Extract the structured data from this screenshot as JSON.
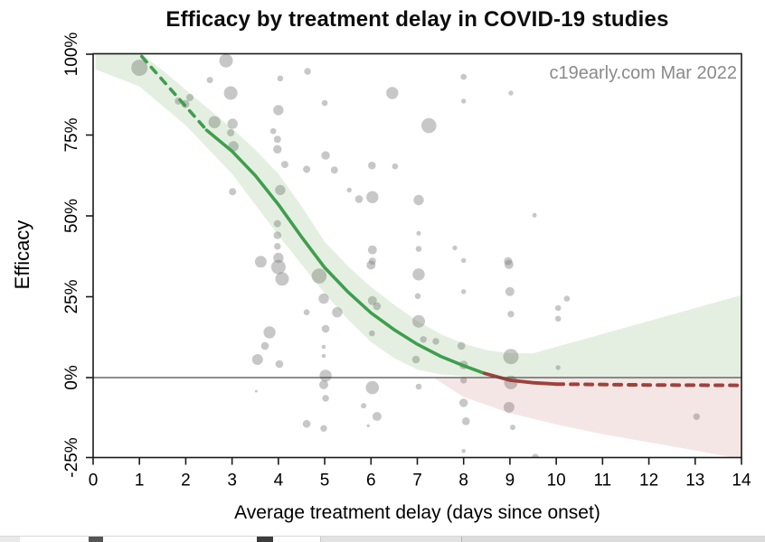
{
  "header": {
    "title": "Efficacy by treatment delay in COVID-19 studies",
    "watermark": "c19early.com Mar 2022"
  },
  "chart_data": {
    "type": "scatter",
    "title": "Efficacy by treatment delay in COVID-19 studies",
    "subtitle": "",
    "watermark": "c19early.com Mar 2022",
    "xlabel": "Average treatment delay (days since onset)",
    "ylabel": "Efficacy",
    "xlim": [
      0,
      14
    ],
    "ylim": [
      -27,
      100.5
    ],
    "x_ticks": [
      0,
      1,
      2,
      3,
      4,
      5,
      6,
      7,
      8,
      9,
      10,
      11,
      12,
      13,
      14
    ],
    "x_tick_labels": [
      "0",
      "1",
      "2",
      "3",
      "4",
      "5",
      "6",
      "7",
      "8",
      "9",
      "10",
      "11",
      "12",
      "13",
      "14"
    ],
    "y_ticks": [
      -25,
      0,
      25,
      50,
      75,
      100
    ],
    "y_tick_labels": [
      "-25%",
      "0%",
      "25%",
      "50%",
      "75%",
      "100%"
    ],
    "grid": false,
    "legend_position": "none",
    "zero_line": 0,
    "colors": {
      "trend_green": "#3f9e4d",
      "trend_red": "#9e423c",
      "band_green": "rgba(74,146,63,0.15)",
      "band_pink": "rgba(185,75,75,0.14)",
      "bubble": "rgba(130,130,130,0.45)",
      "axis": "#1a1a1a",
      "zero_line": "#4a4a4a",
      "watermark": "#8a8a8a"
    },
    "bubbles_note": "each bubble = one study: [avg treatment delay (days), efficacy (%), marker radius px]",
    "bubbles": [
      [
        1.0,
        95.8,
        9
      ],
      [
        2.87,
        98.0,
        7.5
      ],
      [
        2.52,
        92.0,
        3.5
      ],
      [
        2.97,
        88.0,
        7.5
      ],
      [
        4.63,
        94.7,
        3.7
      ],
      [
        4.04,
        92.5,
        3.3
      ],
      [
        1.84,
        85.5,
        4
      ],
      [
        1.99,
        84.6,
        4.5
      ],
      [
        2.09,
        86.6,
        4
      ],
      [
        2.62,
        79.0,
        6.7
      ],
      [
        3.01,
        78.5,
        5.7
      ],
      [
        2.97,
        75.7,
        4
      ],
      [
        4.0,
        82.7,
        5.7
      ],
      [
        3.89,
        76.2,
        3.3
      ],
      [
        3.98,
        73.7,
        4
      ],
      [
        3.98,
        70.6,
        4.7
      ],
      [
        4.14,
        65.9,
        4
      ],
      [
        4.61,
        64.4,
        4
      ],
      [
        3.03,
        71.5,
        5.7
      ],
      [
        3.01,
        57.5,
        4
      ],
      [
        4.04,
        58.0,
        5.7
      ],
      [
        3.98,
        47.6,
        4
      ],
      [
        3.98,
        44.0,
        4.3
      ],
      [
        3.98,
        40.6,
        3.7
      ],
      [
        3.62,
        35.8,
        6.5
      ],
      [
        4.0,
        37.0,
        5.7
      ],
      [
        6.46,
        88.0,
        6.7
      ],
      [
        5.0,
        84.9,
        3.3
      ],
      [
        8.0,
        93.0,
        3.3
      ],
      [
        8.0,
        85.5,
        2.7
      ],
      [
        9.02,
        88.0,
        2.7
      ],
      [
        7.25,
        77.9,
        8.3
      ],
      [
        5.02,
        68.7,
        4.7
      ],
      [
        5.21,
        64.2,
        4
      ],
      [
        6.02,
        65.6,
        4.3
      ],
      [
        6.52,
        65.3,
        3.3
      ],
      [
        5.53,
        58.0,
        2.7
      ],
      [
        5.74,
        55.2,
        4.3
      ],
      [
        6.03,
        55.8,
        6.7
      ],
      [
        7.03,
        54.9,
        5.7
      ],
      [
        9.53,
        50.2,
        2.5
      ],
      [
        7.03,
        44.6,
        2.5
      ],
      [
        7.03,
        39.8,
        3.3
      ],
      [
        7.81,
        40.1,
        2.7
      ],
      [
        6.03,
        39.5,
        5
      ],
      [
        6.03,
        36.0,
        4
      ],
      [
        8.0,
        36.2,
        2.7
      ],
      [
        8.96,
        36.0,
        4.5
      ],
      [
        4.0,
        34.2,
        8
      ],
      [
        4.08,
        30.5,
        7.5
      ],
      [
        4.61,
        20.2,
        3.3
      ],
      [
        3.81,
        14.0,
        6.7
      ],
      [
        3.71,
        9.8,
        4.3
      ],
      [
        3.55,
        5.6,
        6
      ],
      [
        4.02,
        4.2,
        4.3
      ],
      [
        3.52,
        -4.2,
        1.5
      ],
      [
        4.61,
        -14.3,
        4.3
      ],
      [
        4.88,
        31.4,
        8.3
      ],
      [
        4.98,
        24.4,
        5.7
      ],
      [
        5.02,
        15.1,
        4.3
      ],
      [
        4.98,
        9.5,
        2.3
      ],
      [
        4.98,
        6.7,
        2.3
      ],
      [
        5.02,
        0.6,
        6.7
      ],
      [
        4.98,
        -2.2,
        5
      ],
      [
        5.02,
        -6.4,
        3.7
      ],
      [
        5.84,
        -8.7,
        3
      ],
      [
        6.03,
        -3.1,
        7.3
      ],
      [
        6.13,
        -12.0,
        5
      ],
      [
        4.98,
        -15.7,
        3.7
      ],
      [
        5.94,
        -14.9,
        1.7
      ],
      [
        5.27,
        20.2,
        5.7
      ],
      [
        6.0,
        34.8,
        5
      ],
      [
        6.03,
        23.8,
        5
      ],
      [
        6.13,
        22.1,
        4.3
      ],
      [
        6.02,
        13.7,
        3.3
      ],
      [
        7.03,
        31.9,
        6.7
      ],
      [
        7.01,
        25.2,
        3.3
      ],
      [
        7.03,
        17.4,
        7
      ],
      [
        7.13,
        11.8,
        3.7
      ],
      [
        7.4,
        11.2,
        3.7
      ],
      [
        6.97,
        5.6,
        4.3
      ],
      [
        7.03,
        -2.8,
        3.3
      ],
      [
        8.0,
        26.6,
        2.7
      ],
      [
        7.95,
        9.8,
        4.3
      ],
      [
        8.0,
        3.9,
        4.7
      ],
      [
        8.0,
        -0.8,
        3.7
      ],
      [
        8.0,
        -7.8,
        4.7
      ],
      [
        8.05,
        -13.5,
        4.3
      ],
      [
        8.0,
        -22.7,
        2.3
      ],
      [
        8.98,
        35.0,
        5
      ],
      [
        9.0,
        26.6,
        5
      ],
      [
        9.02,
        19.6,
        3.7
      ],
      [
        9.02,
        6.5,
        8.5
      ],
      [
        9.02,
        -1.5,
        7.5
      ],
      [
        8.98,
        -9.2,
        6
      ],
      [
        9.06,
        -15.4,
        3
      ],
      [
        9.55,
        -24.7,
        4
      ],
      [
        10.23,
        24.4,
        3.3
      ],
      [
        10.04,
        21.5,
        3.3
      ],
      [
        10.04,
        18.2,
        3.3
      ],
      [
        10.04,
        3.1,
        2.7
      ],
      [
        13.03,
        -12.1,
        3.7
      ]
    ],
    "trend": {
      "green_dashed": [
        [
          1.05,
          99.3
        ],
        [
          2.45,
          76.5
        ]
      ],
      "green_solid": [
        [
          2.45,
          76.5
        ],
        [
          3,
          70
        ],
        [
          3.5,
          62.5
        ],
        [
          4,
          53.5
        ],
        [
          4.5,
          43.5
        ],
        [
          5,
          34
        ],
        [
          5.5,
          26.5
        ],
        [
          6,
          20
        ],
        [
          6.5,
          14.8
        ],
        [
          7,
          10.3
        ],
        [
          7.5,
          6.6
        ],
        [
          8,
          3.7
        ],
        [
          8.45,
          1.3
        ]
      ],
      "red_solid": [
        [
          8.45,
          1.3
        ],
        [
          9,
          -0.8
        ],
        [
          9.5,
          -1.6
        ],
        [
          10,
          -2.0
        ]
      ],
      "red_dashed": [
        [
          10,
          -2.0
        ],
        [
          12,
          -2.3
        ],
        [
          14,
          -2.4
        ]
      ]
    },
    "bands": {
      "green": {
        "upper": [
          [
            0.05,
            100.5
          ],
          [
            1,
            100.5
          ],
          [
            1.5,
            95
          ],
          [
            2,
            89
          ],
          [
            2.5,
            83
          ],
          [
            3,
            77
          ],
          [
            3.5,
            70.5
          ],
          [
            4,
            63
          ],
          [
            4.5,
            53
          ],
          [
            5,
            42
          ],
          [
            5.5,
            34.5
          ],
          [
            6,
            28
          ],
          [
            6.5,
            22.5
          ],
          [
            7,
            17.5
          ],
          [
            7.5,
            13.5
          ],
          [
            8,
            10.5
          ],
          [
            8.5,
            8.5
          ],
          [
            9,
            7.5
          ],
          [
            9.5,
            7.5
          ],
          [
            10,
            9.5
          ],
          [
            11,
            13.5
          ],
          [
            12,
            17.5
          ],
          [
            13,
            21.5
          ],
          [
            14,
            25.5
          ]
        ],
        "lower": [
          [
            0.05,
            95.3
          ],
          [
            1,
            90
          ],
          [
            2,
            78
          ],
          [
            3,
            63
          ],
          [
            4,
            44
          ],
          [
            4.5,
            35
          ],
          [
            5,
            26
          ],
          [
            5.5,
            18
          ],
          [
            6,
            11
          ],
          [
            6.5,
            6
          ],
          [
            7,
            2.5
          ],
          [
            7.5,
            1
          ],
          [
            8,
            0.4
          ],
          [
            8.5,
            0.2
          ],
          [
            14,
            0.2
          ]
        ]
      },
      "pink": {
        "upper": [
          [
            7.4,
            -0.2
          ],
          [
            14,
            -0.2
          ]
        ],
        "lower": [
          [
            7.4,
            -0.5
          ],
          [
            8,
            -6
          ],
          [
            8.5,
            -8.5
          ],
          [
            9,
            -11
          ],
          [
            10,
            -14.5
          ],
          [
            11,
            -17.5
          ],
          [
            12,
            -20
          ],
          [
            13,
            -22.5
          ],
          [
            14,
            -25.2
          ]
        ]
      }
    }
  }
}
